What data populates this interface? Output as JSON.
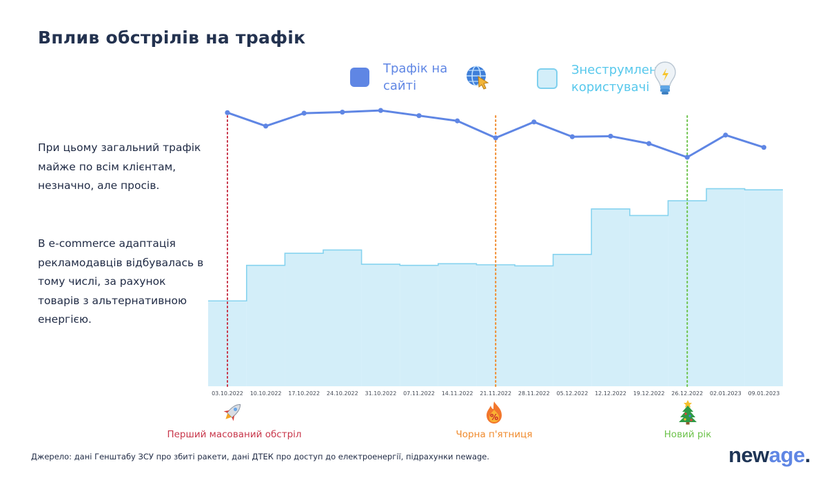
{
  "title": "Вплив обстрілів на трафік",
  "legend": {
    "traffic_label": "Трафік на сайті",
    "users_label": "Знеструмлені користувачі"
  },
  "side_text": {
    "paragraph1": "При цьому загальний трафік майже по всім клієнтам, незначно, але просів.",
    "paragraph2": "В e-commerce адаптація рекламодавців відбувалась в тому числі, за рахунок товарів з альтернативною енергією."
  },
  "events": [
    {
      "label": "Перший масований обстріл",
      "date": "03.10.2022",
      "color": "#c8364a",
      "icon": "rocket-icon"
    },
    {
      "label": "Чорна п'ятниця",
      "date": "21.11.2022",
      "color": "#f08a2c",
      "icon": "fire-percent-icon"
    },
    {
      "label": "Новий рік",
      "date": "26.12.2022",
      "color": "#6cc24a",
      "icon": "christmas-tree-icon"
    }
  ],
  "source": "Джерело: дані Генштабу ЗСУ про збиті ракети, дані ДТЕК про доступ до електроенергії, підрахунки newage.",
  "logo": {
    "part1": "new",
    "part2": "age",
    "part3": "."
  },
  "colors": {
    "traffic": "#5f86e4",
    "users_fill": "#d3eef9",
    "users_line": "#86d3ef"
  },
  "chart_data": {
    "type": "line",
    "categories": [
      "03.10.2022",
      "10.10.2022",
      "17.10.2022",
      "24.10.2022",
      "31.10.2022",
      "07.11.2022",
      "14.11.2022",
      "21.11.2022",
      "28.11.2022",
      "05.12.2022",
      "12.12.2022",
      "19.12.2022",
      "26.12.2022",
      "02.01.2023",
      "09.01.2023"
    ],
    "series": [
      {
        "name": "Трафік на сайті",
        "type": "line",
        "values": [
          100,
          95.1,
          99.8,
          100.2,
          100.8,
          98.9,
          97,
          90.8,
          96.6,
          91.2,
          91.4,
          88.7,
          83.7,
          91.8,
          87.3
        ]
      },
      {
        "name": "Знеструмлені користувачі",
        "type": "step-area",
        "values": [
          31.2,
          44.2,
          48.6,
          49.8,
          44.6,
          44.2,
          44.8,
          44.4,
          44,
          48.2,
          64.8,
          62.4,
          67.8,
          72.2,
          71.8
        ]
      }
    ],
    "ylim": [
      0,
      120
    ],
    "grid": false,
    "legend_position": "top"
  }
}
